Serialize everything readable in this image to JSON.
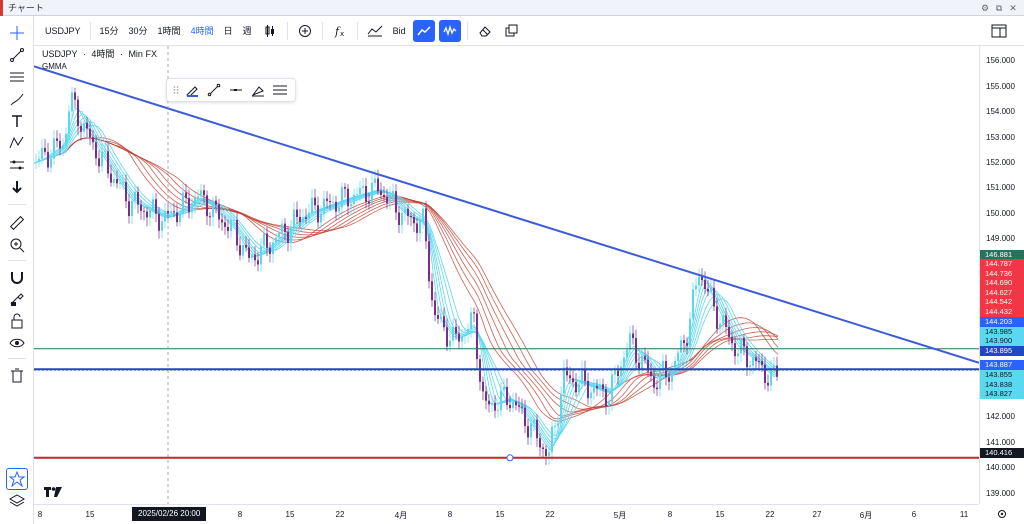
{
  "window": {
    "title": "チャート"
  },
  "toolbar": {
    "symbol": "USDJPY",
    "intervals": [
      "15分",
      "30分",
      "1時間",
      "4時間",
      "日",
      "週"
    ],
    "active_interval": "4時間",
    "price_source": "Bid"
  },
  "legend": {
    "symbol": "USDJPY",
    "interval": "4時間",
    "broker": "Min FX",
    "indicator": "GMMA"
  },
  "price_axis": {
    "min": 138.6,
    "max": 156.6,
    "ticks": [
      "156.000",
      "155.000",
      "154.000",
      "153.000",
      "152.000",
      "151.000",
      "150.000",
      "149.000",
      "142.000",
      "141.000",
      "140.000",
      "139.000"
    ],
    "labels": [
      {
        "text": "146.881",
        "bg": "#26735c"
      },
      {
        "text": "144.787",
        "bg": "#f23645"
      },
      {
        "text": "144.736",
        "bg": "#f23645"
      },
      {
        "text": "144.690",
        "bg": "#f23645"
      },
      {
        "text": "144.627",
        "bg": "#f23645"
      },
      {
        "text": "144.542",
        "bg": "#f23645"
      },
      {
        "text": "144.432",
        "bg": "#f23645"
      },
      {
        "text": "144.203",
        "bg": "#2962ff"
      },
      {
        "text": "143.985",
        "bg": "#5ad8f0"
      },
      {
        "text": "143.900",
        "bg": "#5ad8f0"
      },
      {
        "text": "143.895",
        "bg": "#2346c9"
      },
      {
        "text": "143.887",
        "bg": "#2962ff"
      },
      {
        "text": "143.855",
        "bg": "#5ad8f0"
      },
      {
        "text": "143.838",
        "bg": "#5ad8f0"
      },
      {
        "text": "143.827",
        "bg": "#5ad8f0"
      },
      {
        "text": "140.416",
        "bg": "#131722"
      }
    ]
  },
  "time_axis": {
    "ticks": [
      "8",
      "15",
      "2025/02/26",
      "8",
      "15",
      "22",
      "4月",
      "8",
      "15",
      "22",
      "5月",
      "8",
      "15",
      "22",
      "27",
      "6月",
      "6",
      "11"
    ],
    "cursor_label": "2025/02/26  20:00"
  },
  "colors": {
    "up": "#5ad8f0",
    "down": "#7b2d8e",
    "trend": "#3b5bdb",
    "support": "#c62828",
    "hline_green": "#26735c",
    "hline_blue": "#2346c9"
  }
}
